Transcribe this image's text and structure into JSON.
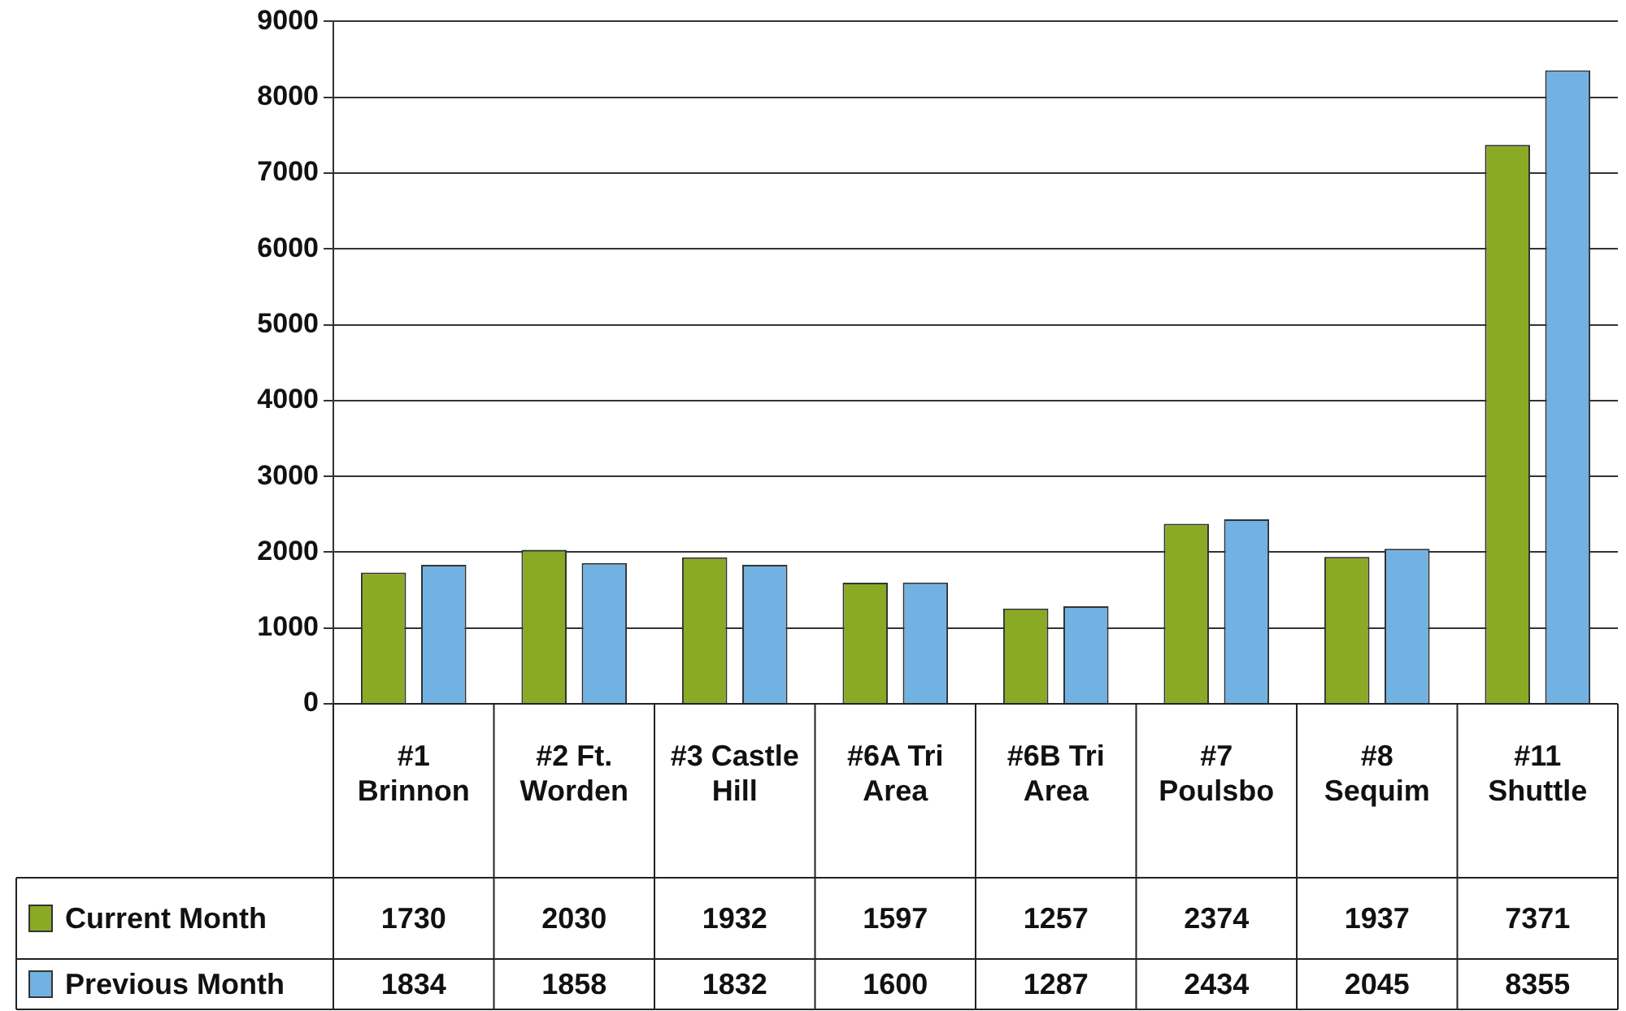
{
  "chart_data": {
    "type": "bar",
    "categories": [
      "#1 Brinnon",
      "#2 Ft. Worden",
      "#3 Castle Hill",
      "#6A Tri Area",
      "#6B Tri Area",
      "#7 Poulsbo",
      "#8 Sequim",
      "#11 Shuttle"
    ],
    "series": [
      {
        "name": "Current Month",
        "color": "#8aaa26",
        "values": [
          1730,
          2030,
          1932,
          1597,
          1257,
          2374,
          1937,
          7371
        ]
      },
      {
        "name": "Previous Month",
        "color": "#72b2e2",
        "values": [
          1834,
          1858,
          1832,
          1600,
          1287,
          2434,
          2045,
          8355
        ]
      }
    ],
    "ylim": [
      0,
      9000
    ],
    "yticks": [
      0,
      1000,
      2000,
      3000,
      4000,
      5000,
      6000,
      7000,
      8000,
      9000
    ],
    "grid": "y",
    "legend": "bottom",
    "data_labels": true
  }
}
